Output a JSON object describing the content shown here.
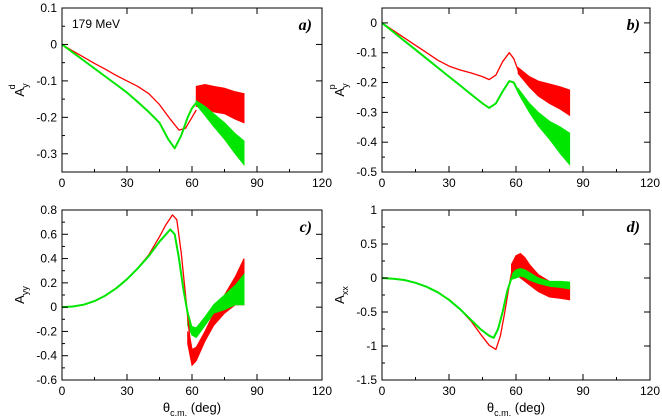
{
  "colors": {
    "red": "#ff0000",
    "green": "#00e600",
    "axis": "#000000",
    "background": "#ffffff"
  },
  "chart_data": [
    {
      "type": "line",
      "panel": "a)",
      "annotation": "179 MeV",
      "ylabel": {
        "main": "A",
        "sub": "y",
        "sup": "d"
      },
      "xlabel": {
        "main": "θ",
        "sub": "c.m.",
        "tail": " (deg)"
      },
      "xlim": [
        0,
        120
      ],
      "ylim": [
        -0.35,
        0.1
      ],
      "xticks": [
        0,
        30,
        60,
        90,
        120
      ],
      "xtick_labels": [
        "0",
        "30",
        "60",
        "90",
        "120"
      ],
      "yticks": [
        0.1,
        0,
        -0.1,
        -0.2,
        -0.3
      ],
      "ytick_labels": [
        "0.1",
        "0",
        "-0.1",
        "-0.2",
        "-0.3"
      ],
      "show_xtick_labels": true,
      "show_xlabel": false,
      "series": [
        {
          "name": "red curve",
          "color": "red",
          "kind": "line",
          "x": [
            0,
            5,
            10,
            15,
            20,
            25,
            30,
            35,
            40,
            45,
            50,
            54,
            57,
            60,
            62
          ],
          "y": [
            0,
            -0.018,
            -0.035,
            -0.052,
            -0.068,
            -0.085,
            -0.1,
            -0.115,
            -0.135,
            -0.165,
            -0.205,
            -0.235,
            -0.23,
            -0.2,
            -0.18
          ]
        },
        {
          "name": "green curve",
          "color": "green",
          "kind": "line",
          "x": [
            0,
            5,
            10,
            15,
            20,
            25,
            30,
            35,
            40,
            45,
            49,
            52,
            55,
            58,
            60,
            62
          ],
          "y": [
            0,
            -0.022,
            -0.044,
            -0.066,
            -0.088,
            -0.11,
            -0.132,
            -0.158,
            -0.185,
            -0.215,
            -0.26,
            -0.285,
            -0.25,
            -0.2,
            -0.175,
            -0.16
          ]
        },
        {
          "name": "red band",
          "color": "red",
          "kind": "band",
          "x": [
            62,
            66,
            70,
            75,
            80,
            84
          ],
          "upper": [
            -0.115,
            -0.11,
            -0.115,
            -0.12,
            -0.13,
            -0.135
          ],
          "lower": [
            -0.17,
            -0.175,
            -0.185,
            -0.19,
            -0.205,
            -0.215
          ]
        },
        {
          "name": "green band",
          "color": "green",
          "kind": "band",
          "x": [
            62,
            66,
            70,
            75,
            80,
            84
          ],
          "upper": [
            -0.155,
            -0.17,
            -0.19,
            -0.215,
            -0.245,
            -0.265
          ],
          "lower": [
            -0.165,
            -0.195,
            -0.225,
            -0.26,
            -0.3,
            -0.33
          ]
        }
      ]
    },
    {
      "type": "line",
      "panel": "b)",
      "annotation": "",
      "ylabel": {
        "main": "A",
        "sub": "y",
        "sup": "p"
      },
      "xlabel": {
        "main": "θ",
        "sub": "c.m.",
        "tail": " (deg)"
      },
      "xlim": [
        0,
        120
      ],
      "ylim": [
        -0.5,
        0.05
      ],
      "xticks": [
        0,
        30,
        60,
        90,
        120
      ],
      "xtick_labels": [
        "0",
        "30",
        "60",
        "90",
        "120"
      ],
      "yticks": [
        0,
        -0.1,
        -0.2,
        -0.3,
        -0.4,
        -0.5
      ],
      "ytick_labels": [
        "0",
        "-0.1",
        "-0.2",
        "-0.3",
        "-0.4",
        "-0.5"
      ],
      "show_xtick_labels": true,
      "show_xlabel": false,
      "series": [
        {
          "name": "red curve",
          "color": "red",
          "kind": "line",
          "x": [
            0,
            5,
            10,
            15,
            20,
            25,
            30,
            35,
            40,
            45,
            48,
            51,
            54,
            57,
            59,
            61,
            63
          ],
          "y": [
            0,
            -0.025,
            -0.05,
            -0.075,
            -0.1,
            -0.125,
            -0.145,
            -0.158,
            -0.168,
            -0.18,
            -0.19,
            -0.175,
            -0.13,
            -0.1,
            -0.12,
            -0.16,
            -0.18
          ]
        },
        {
          "name": "green curve",
          "color": "green",
          "kind": "line",
          "x": [
            0,
            5,
            10,
            15,
            20,
            25,
            30,
            35,
            40,
            45,
            48,
            51,
            54,
            57,
            59,
            61,
            63
          ],
          "y": [
            0,
            -0.03,
            -0.06,
            -0.09,
            -0.12,
            -0.15,
            -0.18,
            -0.21,
            -0.24,
            -0.27,
            -0.285,
            -0.27,
            -0.23,
            -0.195,
            -0.2,
            -0.23,
            -0.255
          ]
        },
        {
          "name": "red band",
          "color": "red",
          "kind": "band",
          "x": [
            61,
            66,
            70,
            75,
            80,
            84
          ],
          "upper": [
            -0.15,
            -0.18,
            -0.195,
            -0.205,
            -0.215,
            -0.225
          ],
          "lower": [
            -0.17,
            -0.215,
            -0.245,
            -0.27,
            -0.29,
            -0.31
          ]
        },
        {
          "name": "green band",
          "color": "green",
          "kind": "band",
          "x": [
            61,
            66,
            70,
            75,
            80,
            84
          ],
          "upper": [
            -0.22,
            -0.27,
            -0.3,
            -0.33,
            -0.35,
            -0.37
          ],
          "lower": [
            -0.235,
            -0.3,
            -0.345,
            -0.39,
            -0.44,
            -0.475
          ]
        }
      ]
    },
    {
      "type": "line",
      "panel": "c)",
      "annotation": "",
      "ylabel": {
        "main": "A",
        "sub": "yy",
        "sup": ""
      },
      "xlabel": {
        "main": "θ",
        "sub": "c.m.",
        "tail": " (deg)"
      },
      "xlim": [
        0,
        120
      ],
      "ylim": [
        -0.6,
        0.8
      ],
      "xticks": [
        0,
        30,
        60,
        90,
        120
      ],
      "xtick_labels": [
        "0",
        "30",
        "60",
        "90",
        "120"
      ],
      "yticks": [
        0.8,
        0.6,
        0.4,
        0.2,
        0,
        -0.2,
        -0.4,
        -0.6
      ],
      "ytick_labels": [
        "0.8",
        "0.6",
        "0.4",
        "0.2",
        "0",
        "-0.2",
        "-0.4",
        "-0.6"
      ],
      "show_xtick_labels": true,
      "show_xlabel": true,
      "series": [
        {
          "name": "red curve",
          "color": "red",
          "kind": "line",
          "x": [
            0,
            5,
            10,
            15,
            20,
            25,
            30,
            35,
            40,
            45,
            48,
            51,
            53,
            55,
            57,
            59,
            61
          ],
          "y": [
            0,
            0.005,
            0.02,
            0.05,
            0.095,
            0.155,
            0.23,
            0.32,
            0.43,
            0.58,
            0.68,
            0.76,
            0.72,
            0.45,
            0.1,
            -0.25,
            -0.45
          ]
        },
        {
          "name": "green curve",
          "color": "green",
          "kind": "line",
          "x": [
            0,
            5,
            10,
            15,
            20,
            25,
            30,
            35,
            40,
            45,
            48,
            50,
            52,
            54,
            56,
            58,
            60,
            62
          ],
          "y": [
            0,
            0.005,
            0.02,
            0.05,
            0.095,
            0.155,
            0.23,
            0.32,
            0.42,
            0.54,
            0.6,
            0.64,
            0.6,
            0.4,
            0.15,
            -0.05,
            -0.18,
            -0.22
          ]
        },
        {
          "name": "red band",
          "color": "red",
          "kind": "band",
          "x": [
            58,
            60,
            62,
            66,
            70,
            75,
            80,
            84
          ],
          "upper": [
            -0.2,
            -0.35,
            -0.33,
            -0.2,
            -0.05,
            0.1,
            0.25,
            0.4
          ],
          "lower": [
            -0.3,
            -0.48,
            -0.44,
            -0.28,
            -0.15,
            -0.05,
            0.02,
            0.02
          ]
        },
        {
          "name": "green band",
          "color": "green",
          "kind": "band",
          "x": [
            58,
            60,
            62,
            66,
            70,
            75,
            80,
            84
          ],
          "upper": [
            -0.1,
            -0.16,
            -0.17,
            -0.08,
            0.02,
            0.1,
            0.18,
            0.27
          ],
          "lower": [
            -0.15,
            -0.23,
            -0.25,
            -0.15,
            -0.05,
            -0.02,
            0.02,
            0.02
          ]
        }
      ]
    },
    {
      "type": "line",
      "panel": "d)",
      "annotation": "",
      "ylabel": {
        "main": "A",
        "sub": "xx",
        "sup": ""
      },
      "xlabel": {
        "main": "θ",
        "sub": "c.m.",
        "tail": " (deg)"
      },
      "xlim": [
        0,
        120
      ],
      "ylim": [
        -1.5,
        1
      ],
      "xticks": [
        0,
        30,
        60,
        90,
        120
      ],
      "xtick_labels": [
        "0",
        "30",
        "60",
        "90",
        "120"
      ],
      "yticks": [
        1,
        0.5,
        0,
        -0.5,
        -1,
        -1.5
      ],
      "ytick_labels": [
        "1",
        "0.5",
        "0",
        "-0.5",
        "-1",
        "-1.5"
      ],
      "show_xtick_labels": true,
      "show_xlabel": true,
      "series": [
        {
          "name": "red curve",
          "color": "red",
          "kind": "line",
          "x": [
            0,
            5,
            10,
            15,
            20,
            25,
            30,
            35,
            40,
            44,
            48,
            51,
            53,
            55,
            57,
            59
          ],
          "y": [
            0,
            -0.01,
            -0.03,
            -0.07,
            -0.13,
            -0.21,
            -0.32,
            -0.46,
            -0.64,
            -0.82,
            -0.99,
            -1.05,
            -0.85,
            -0.5,
            -0.1,
            0.25
          ]
        },
        {
          "name": "green curve",
          "color": "green",
          "kind": "line",
          "x": [
            0,
            5,
            10,
            15,
            20,
            25,
            30,
            35,
            40,
            44,
            48,
            50,
            52,
            54,
            56,
            58,
            60
          ],
          "y": [
            0,
            -0.01,
            -0.03,
            -0.07,
            -0.13,
            -0.21,
            -0.32,
            -0.46,
            -0.62,
            -0.75,
            -0.85,
            -0.88,
            -0.75,
            -0.5,
            -0.2,
            0.0,
            0.08
          ]
        },
        {
          "name": "red band",
          "color": "red",
          "kind": "band",
          "x": [
            58,
            60,
            62,
            64,
            66,
            70,
            75,
            80,
            84
          ],
          "upper": [
            0.2,
            0.33,
            0.36,
            0.3,
            0.2,
            0.05,
            -0.05,
            -0.1,
            -0.12
          ],
          "lower": [
            0.05,
            0.05,
            0.0,
            -0.05,
            -0.1,
            -0.2,
            -0.28,
            -0.3,
            -0.32
          ]
        },
        {
          "name": "green band",
          "color": "green",
          "kind": "band",
          "x": [
            58,
            60,
            62,
            64,
            66,
            70,
            75,
            80,
            84
          ],
          "upper": [
            0.05,
            0.12,
            0.14,
            0.12,
            0.08,
            0.0,
            -0.05,
            -0.05,
            -0.06
          ],
          "lower": [
            -0.02,
            0.0,
            0.03,
            0.01,
            -0.03,
            -0.08,
            -0.12,
            -0.14,
            -0.16
          ]
        }
      ]
    }
  ]
}
